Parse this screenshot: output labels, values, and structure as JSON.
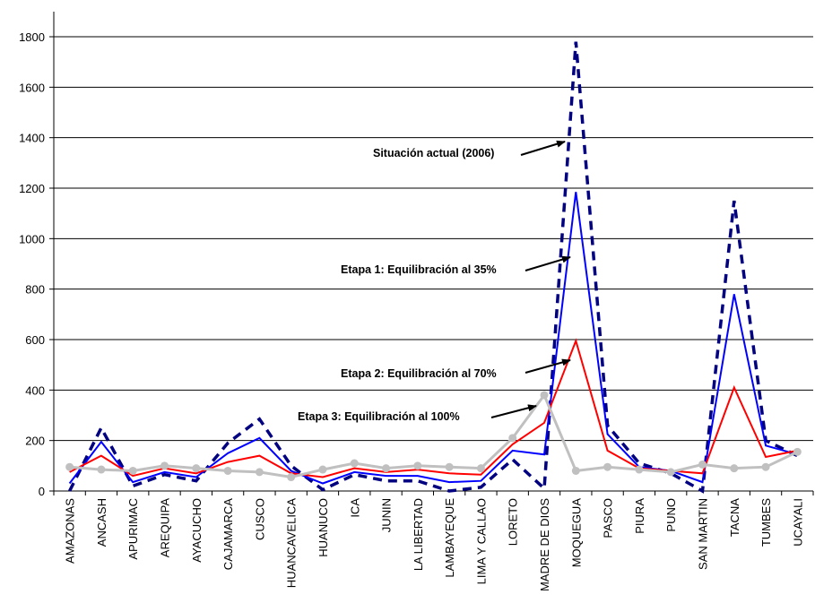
{
  "chart_data": {
    "type": "line",
    "title": "",
    "xlabel": "",
    "ylabel": "",
    "ylim": [
      0,
      1800
    ],
    "yticks": [
      0,
      200,
      400,
      600,
      800,
      1000,
      1200,
      1400,
      1600,
      1800
    ],
    "grid": true,
    "legend": "none",
    "categories": [
      "AMAZONAS",
      "ANCASH",
      "APURIMAC",
      "AREQUIPA",
      "AYACUCHO",
      "CAJAMARCA",
      "CUSCO",
      "HUANCAVELICA",
      "HUANUCO",
      "ICA",
      "JUNIN",
      "LA LIBERTAD",
      "LAMBAYEQUE",
      "LIMA Y CALLAO",
      "LORETO",
      "MADRE DE DIOS",
      "MOQUEGUA",
      "PASCO",
      "PIURA",
      "PUNO",
      "SAN MARTIN",
      "TACNA",
      "TUMBES",
      "UCAYALI"
    ],
    "series": [
      {
        "name": "Situación actual (2006)",
        "color": "#000080",
        "style": "dashed",
        "values": [
          0,
          250,
          20,
          65,
          40,
          190,
          285,
          100,
          5,
          65,
          40,
          40,
          0,
          15,
          125,
          10,
          1780,
          260,
          110,
          70,
          0,
          1150,
          200,
          140
        ]
      },
      {
        "name": "Etapa 1: Equilibración al 35%",
        "color": "#0000ff",
        "style": "solid",
        "values": [
          30,
          195,
          35,
          75,
          55,
          150,
          210,
          80,
          30,
          75,
          60,
          60,
          35,
          40,
          160,
          145,
          1185,
          225,
          95,
          80,
          35,
          780,
          180,
          145
        ]
      },
      {
        "name": "Etapa 2: Equilibración al 70%",
        "color": "#ff0000",
        "style": "solid",
        "values": [
          75,
          140,
          60,
          90,
          70,
          115,
          140,
          70,
          55,
          90,
          75,
          85,
          70,
          65,
          185,
          270,
          595,
          160,
          90,
          80,
          70,
          410,
          135,
          160
        ]
      },
      {
        "name": "Etapa 3: Equilibración al 100%",
        "color": "#c0c0c0",
        "style": "solid-markers",
        "values": [
          95,
          85,
          80,
          100,
          90,
          80,
          75,
          55,
          85,
          110,
          90,
          100,
          95,
          90,
          210,
          380,
          80,
          95,
          85,
          75,
          105,
          90,
          95,
          155
        ]
      }
    ],
    "annotations": [
      {
        "text": "Situación actual (2006)",
        "series": 0
      },
      {
        "text": "Etapa 1: Equilibración al 35%",
        "series": 1
      },
      {
        "text": "Etapa 2: Equilibración al 70%",
        "series": 2
      },
      {
        "text": "Etapa 3: Equilibración al 100%",
        "series": 3
      }
    ]
  }
}
